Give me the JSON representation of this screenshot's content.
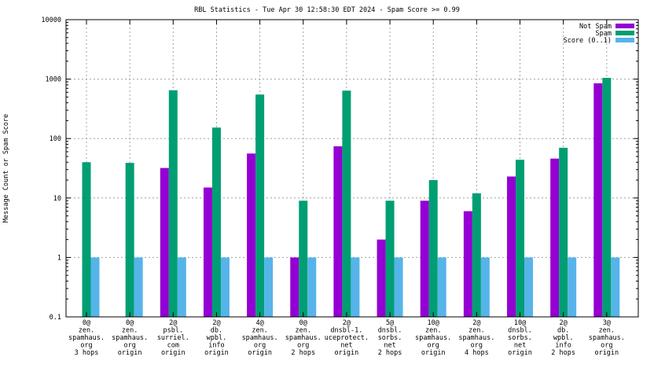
{
  "chart_data": {
    "type": "bar",
    "title": "RBL Statistics - Tue Apr 30 12:58:30 EDT 2024 - Spam Score >= 0.99",
    "xlabel": "",
    "ylabel": "Message Count or Spam Score",
    "yscale": "log",
    "ylim": [
      0.1,
      10000
    ],
    "yticks": [
      "0.1",
      "1",
      "10",
      "100",
      "1000",
      "10000"
    ],
    "grid": true,
    "legend_position": "top-right",
    "categories": [
      [
        "0@",
        "zen.",
        "spamhaus.",
        "org",
        "3 hops"
      ],
      [
        "0@",
        "zen.",
        "spamhaus.",
        "org",
        "origin"
      ],
      [
        "2@",
        "psbl.",
        "surriel.",
        "com",
        "origin"
      ],
      [
        "2@",
        "db.",
        "wpbl.",
        "info",
        "origin"
      ],
      [
        "4@",
        "zen.",
        "spamhaus.",
        "org",
        "origin"
      ],
      [
        "0@",
        "zen.",
        "spamhaus.",
        "org",
        "2 hops"
      ],
      [
        "2@",
        "dnsbl-1.",
        "uceprotect.",
        "net",
        "origin"
      ],
      [
        "5@",
        "dnsbl.",
        "sorbs.",
        "net",
        "2 hops"
      ],
      [
        "10@",
        "zen.",
        "spamhaus.",
        "org",
        "origin"
      ],
      [
        "2@",
        "zen.",
        "spamhaus.",
        "org",
        "4 hops"
      ],
      [
        "10@",
        "dnsbl.",
        "sorbs.",
        "net",
        "origin"
      ],
      [
        "2@",
        "db.",
        "wpbl.",
        "info",
        "2 hops"
      ],
      [
        "3@",
        "zen.",
        "spamhaus.",
        "org",
        "origin"
      ]
    ],
    "series": [
      {
        "name": "Not Spam",
        "color": "#9400d3",
        "values": [
          null,
          null,
          32,
          15,
          56,
          1,
          74,
          2,
          9,
          6,
          23,
          46,
          850
        ]
      },
      {
        "name": "Spam",
        "color": "#009e73",
        "values": [
          40,
          39,
          650,
          153,
          550,
          9,
          640,
          9,
          20,
          12,
          44,
          70,
          1050
        ]
      },
      {
        "name": "Score (0..1)",
        "color": "#56b4e9",
        "values": [
          1,
          1,
          1,
          1,
          1,
          1,
          1,
          1,
          1,
          1,
          1,
          1,
          1
        ]
      }
    ]
  }
}
